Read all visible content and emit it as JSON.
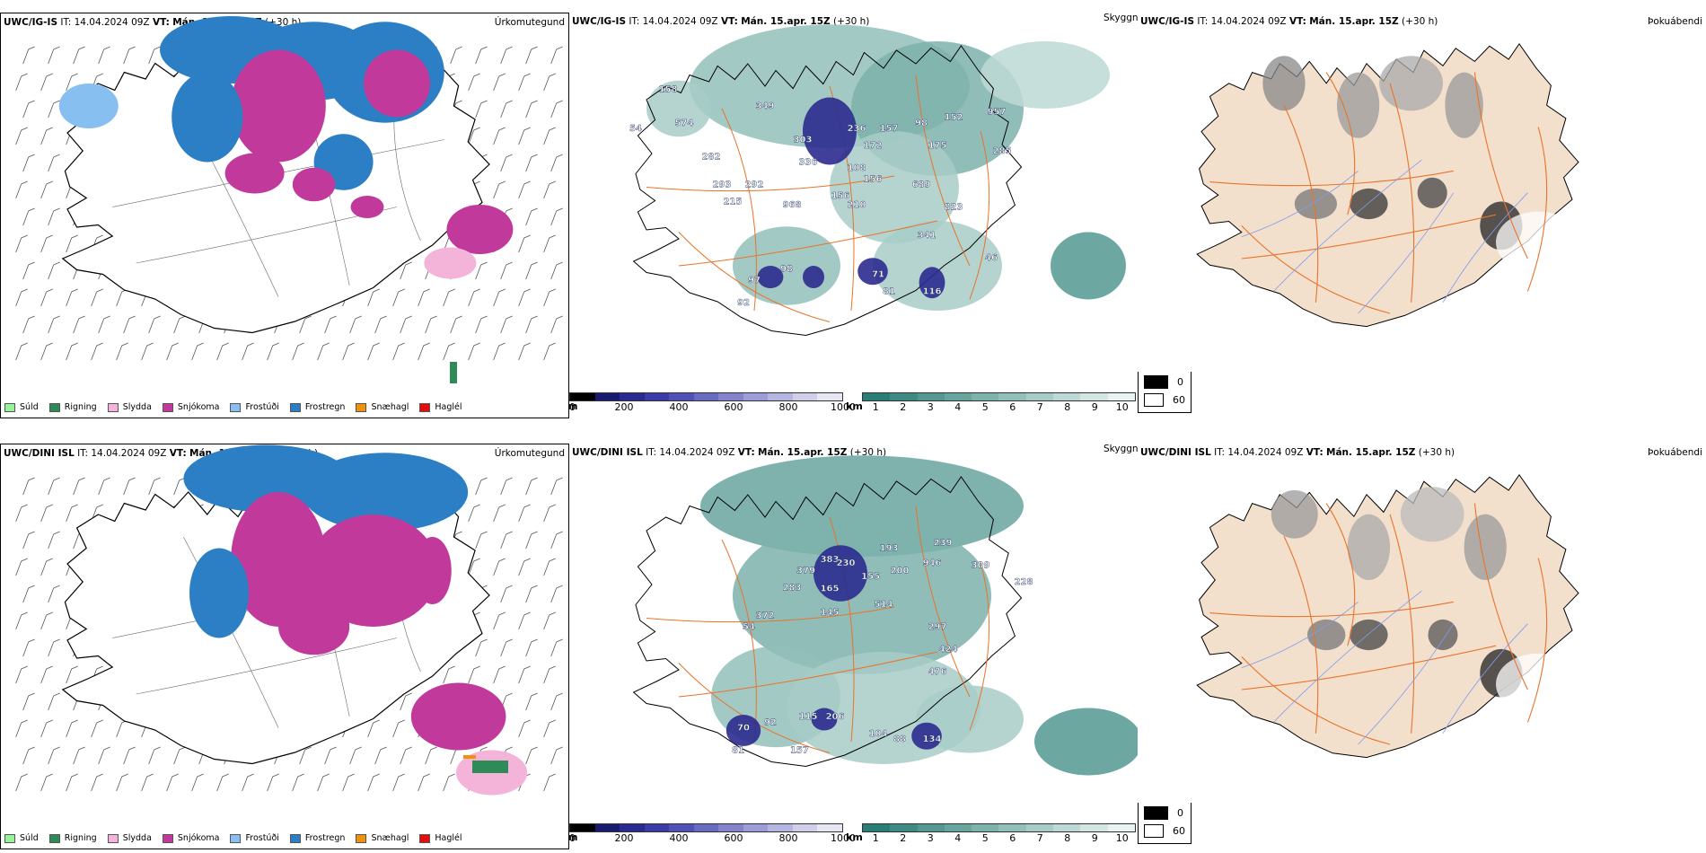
{
  "rows": [
    {
      "model": "UWC/IG-IS",
      "it": "14.04.2024 09Z",
      "vt": "Mán. 15.apr. 15Z",
      "lead": "(+30 h)",
      "ceiling_labels": [
        "158",
        "54",
        "574",
        "349",
        "282",
        "303",
        "236",
        "157",
        "98",
        "152",
        "957",
        "172",
        "175",
        "285",
        "336",
        "108",
        "156",
        "293",
        "292",
        "215",
        "968",
        "156",
        "210",
        "689",
        "823",
        "341",
        "97",
        "98",
        "92",
        "71",
        "81",
        "116",
        "46"
      ]
    },
    {
      "model": "UWC/DINI ISL",
      "it": "14.04.2024 09Z",
      "vt": "Mán. 15.apr. 15Z",
      "lead": "(+30 h)",
      "ceiling_labels": [
        "379",
        "383",
        "230",
        "193",
        "239",
        "946",
        "283",
        "165",
        "155",
        "200",
        "309",
        "228",
        "372",
        "145",
        "514",
        "54",
        "297",
        "424",
        "476",
        "70",
        "92",
        "115",
        "206",
        "104",
        "88",
        "134",
        "81",
        "157"
      ]
    }
  ],
  "panel_titles": {
    "precip_type": "Úrkomutegund",
    "ceiling_visibility": "Skyggni",
    "fog": "Þokuábendi"
  },
  "header_labels": {
    "it": "IT:",
    "vt": "VT:"
  },
  "precip_legend": [
    {
      "label": "Súld",
      "color": "#98f098"
    },
    {
      "label": "Rigning",
      "color": "#2e8b57"
    },
    {
      "label": "Slydda",
      "color": "#f4b3d8"
    },
    {
      "label": "Snjókoma",
      "color": "#c0399b"
    },
    {
      "label": "Frostúði",
      "color": "#87bff0"
    },
    {
      "label": "Frostregn",
      "color": "#2c7fc4"
    },
    {
      "label": "Snæhagl",
      "color": "#f0920f"
    },
    {
      "label": "Haglél",
      "color": "#e01010"
    }
  ],
  "ceiling_scale": {
    "unit": "m",
    "ticks": [
      "0",
      "200",
      "400",
      "600",
      "800",
      "1000"
    ],
    "colors": [
      "#000000",
      "#1a1a70",
      "#2b2b8f",
      "#3c3ca8",
      "#5252b6",
      "#6a6ac0",
      "#8383cc",
      "#9c9cd6",
      "#b5b5e0",
      "#cfcfea",
      "#e6e6f3"
    ]
  },
  "visibility_scale": {
    "unit": "km",
    "ticks": [
      "1",
      "2",
      "3",
      "4",
      "5",
      "6",
      "7",
      "8",
      "9",
      "10"
    ],
    "colors": [
      "#2a7e76",
      "#3f8b84",
      "#549891",
      "#69a59f",
      "#7eb2ac",
      "#93bfba",
      "#a8ccc8",
      "#bdd9d5",
      "#d2e6e3",
      "#e8f3f2"
    ]
  },
  "fog_legend": [
    {
      "label": "0",
      "color": "#000000"
    },
    {
      "label": "60",
      "color": "#ffffff"
    }
  ],
  "colors": {
    "land_fog": "#f2dfcc",
    "roads": "#e8742a",
    "rivers": "#7f9cf0",
    "coast": "#000000"
  }
}
